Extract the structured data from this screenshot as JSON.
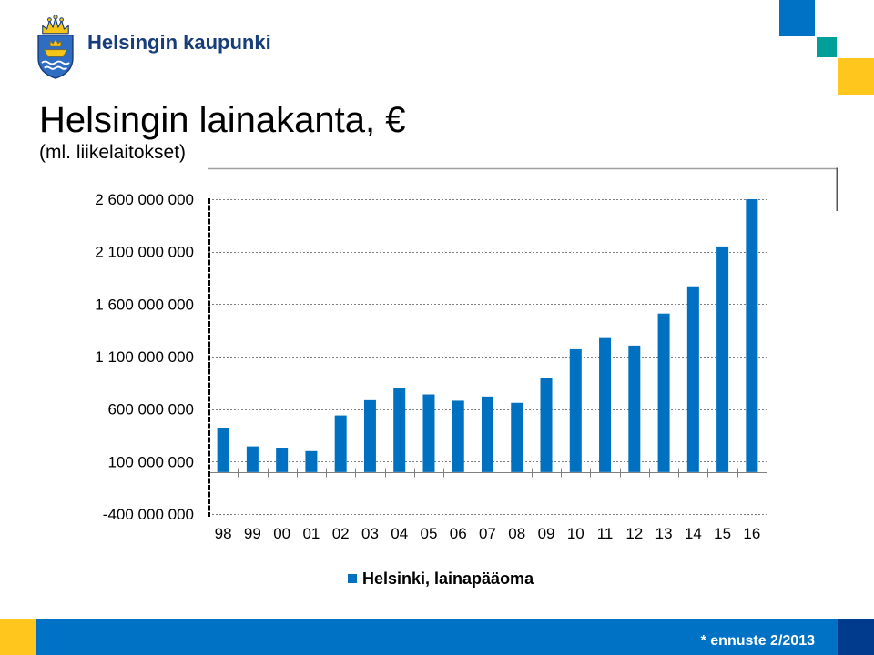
{
  "logo": {
    "text": "Helsingin kaupunki",
    "icon": "helsinki-coat-of-arms"
  },
  "slide": {
    "title": "Helsingin lainakanta, €",
    "subtitle": "(ml. liikelaitokset)",
    "footnote": "* ennuste 2/2013"
  },
  "colors": {
    "bar": "#0070c0",
    "logo_text": "#173d7a",
    "accent_blue": "#0072c6",
    "accent_teal": "#009f9a",
    "accent_yellow": "#ffc61e",
    "footer_blue": "#0072c6",
    "footer_navy": "#003b8e"
  },
  "chart_data": {
    "type": "bar",
    "categories": [
      "98",
      "99",
      "00",
      "01",
      "02",
      "03",
      "04",
      "05",
      "06",
      "07",
      "08",
      "09",
      "10",
      "11",
      "12",
      "13",
      "14",
      "15",
      "16"
    ],
    "series": [
      {
        "name": "Helsinki, lainapääoma",
        "values": [
          420000000,
          245000000,
          225000000,
          200000000,
          540000000,
          685000000,
          800000000,
          740000000,
          680000000,
          720000000,
          660000000,
          895000000,
          1170000000,
          1285000000,
          1205000000,
          1510000000,
          1770000000,
          2150000000,
          2600000000
        ]
      }
    ],
    "ylim": [
      -400000000,
      2600000000
    ],
    "yticks": [
      2600000000,
      2100000000,
      1600000000,
      1100000000,
      600000000,
      100000000,
      -400000000
    ],
    "ytick_labels": [
      "2 600 000 000",
      "2 100 000 000",
      "1 600 000 000",
      "1 100 000 000",
      "600 000 000",
      "100 000 000",
      "-400 000 000"
    ],
    "grid": true,
    "legend": "bottom"
  }
}
